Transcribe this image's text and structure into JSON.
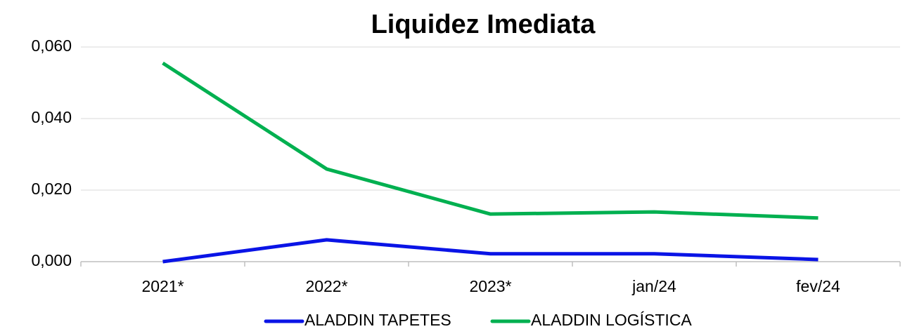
{
  "chart_data": {
    "type": "line",
    "title": "Liquidez Imediata",
    "categories": [
      "2021*",
      "2022*",
      "2023*",
      "jan/24",
      "fev/24"
    ],
    "series": [
      {
        "name": "ALADDIN TAPETES",
        "color": "#0a14e6",
        "values": [
          0.0,
          0.0061,
          0.0022,
          0.0022,
          0.0006
        ]
      },
      {
        "name": "ALADDIN LOGÍSTICA",
        "color": "#00b050",
        "values": [
          0.0555,
          0.0259,
          0.0133,
          0.0139,
          0.0122
        ]
      }
    ],
    "ylim": [
      0,
      0.06
    ],
    "yticks": [
      {
        "value": 0,
        "label": "0,000"
      },
      {
        "value": 0.02,
        "label": "0,020"
      },
      {
        "value": 0.04,
        "label": "0,040"
      },
      {
        "value": 0.06,
        "label": "0,060"
      }
    ],
    "grid": true,
    "legend": "bottom"
  }
}
